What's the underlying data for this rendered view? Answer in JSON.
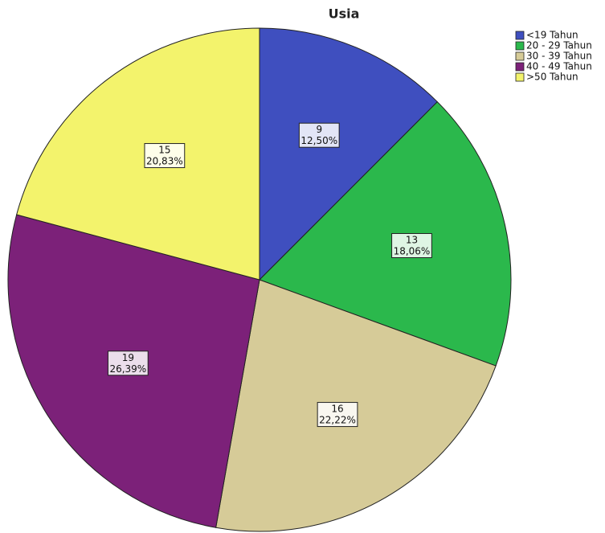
{
  "chart_data": {
    "type": "pie",
    "title": "Usia",
    "categories": [
      "<19 Tahun",
      "20 - 29 Tahun",
      "30 - 39 Tahun",
      "40 - 49 Tahun",
      ">50 Tahun"
    ],
    "values": [
      9,
      13,
      16,
      19,
      15
    ],
    "percentages": [
      12.5,
      18.06,
      22.22,
      26.39,
      20.83
    ],
    "percentage_labels": [
      "12,50%",
      "18,06%",
      "22,22%",
      "26,39%",
      "20,83%"
    ],
    "colors": [
      "#3f4fbf",
      "#2bb84c",
      "#d6cb98",
      "#7c2179",
      "#f3f36c"
    ],
    "legend": "top-right"
  }
}
